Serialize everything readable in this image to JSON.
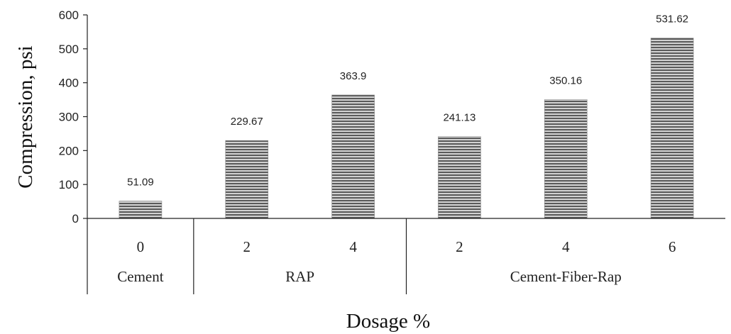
{
  "chart_data": {
    "type": "bar",
    "title": "",
    "ylabel": "Compression, psi",
    "xlabel": "Dosage %",
    "ylim": [
      0,
      600
    ],
    "yticks": [
      0,
      100,
      200,
      300,
      400,
      500,
      600
    ],
    "categories": [
      "0",
      "2",
      "4",
      "2",
      "4",
      "6"
    ],
    "groups": [
      {
        "label": "Cement",
        "count": 1
      },
      {
        "label": "RAP",
        "count": 2
      },
      {
        "label": "Cement-Fiber-Rap",
        "count": 3
      }
    ],
    "values": [
      51.09,
      229.67,
      363.9,
      241.13,
      350.16,
      531.62
    ],
    "data_labels": [
      "51.09",
      "229.67",
      "363.9",
      "241.13",
      "350.16",
      "531.62"
    ],
    "bar_pattern": "horizontal-stripes",
    "colors": {
      "bar_fill": "#c8c8c8",
      "stripe": "#5a5a5a",
      "axis": "#222222"
    },
    "grid": false,
    "legend": "none"
  }
}
